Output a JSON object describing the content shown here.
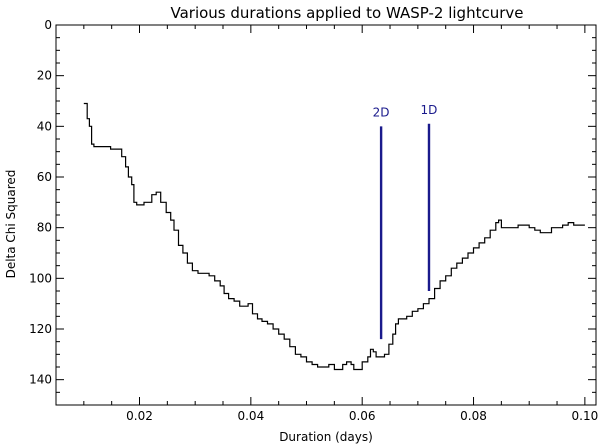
{
  "chart_data": {
    "type": "line",
    "title": "Various durations applied to WASP-2 lightcurve",
    "xlabel": "Duration (days)",
    "ylabel": "Delta Chi Squared",
    "xlim": [
      0.005,
      0.102
    ],
    "ylim": [
      0,
      150
    ],
    "y_inverted": true,
    "grid": false,
    "x_ticks": [
      0.02,
      0.04,
      0.06,
      0.08,
      0.1
    ],
    "x_tick_labels": [
      "0.02",
      "0.04",
      "0.06",
      "0.08",
      "0.10"
    ],
    "y_ticks": [
      0,
      20,
      40,
      60,
      80,
      100,
      120,
      140
    ],
    "y_tick_labels": [
      "0",
      "20",
      "40",
      "60",
      "80",
      "100",
      "120",
      "140"
    ],
    "series": [
      {
        "style": "step",
        "color": "#000000",
        "x": [
          0.01,
          0.0106,
          0.011,
          0.0114,
          0.0118,
          0.0125,
          0.0135,
          0.0148,
          0.016,
          0.0168,
          0.0175,
          0.018,
          0.0186,
          0.019,
          0.0195,
          0.02,
          0.0208,
          0.0214,
          0.0222,
          0.023,
          0.0238,
          0.0248,
          0.0256,
          0.0262,
          0.027,
          0.0278,
          0.0286,
          0.0295,
          0.0305,
          0.0315,
          0.0325,
          0.0335,
          0.0345,
          0.0352,
          0.036,
          0.037,
          0.038,
          0.0388,
          0.0395,
          0.0403,
          0.0412,
          0.042,
          0.043,
          0.044,
          0.045,
          0.046,
          0.047,
          0.048,
          0.049,
          0.05,
          0.051,
          0.052,
          0.053,
          0.054,
          0.055,
          0.056,
          0.0565,
          0.0572,
          0.058,
          0.0585,
          0.059,
          0.06,
          0.061,
          0.0615,
          0.062,
          0.0625,
          0.0632,
          0.064,
          0.0648,
          0.0655,
          0.066,
          0.0665,
          0.067,
          0.068,
          0.069,
          0.07,
          0.071,
          0.072,
          0.073,
          0.074,
          0.075,
          0.076,
          0.077,
          0.078,
          0.079,
          0.08,
          0.081,
          0.082,
          0.083,
          0.084,
          0.0845,
          0.085,
          0.086,
          0.087,
          0.088,
          0.089,
          0.09,
          0.091,
          0.092,
          0.093,
          0.094,
          0.095,
          0.096,
          0.097,
          0.098,
          0.099,
          0.1
        ],
        "y": [
          31,
          37,
          40,
          47,
          48,
          48,
          48,
          49,
          49,
          52,
          56,
          60,
          63,
          70,
          71,
          71,
          70,
          70,
          67,
          66,
          70,
          74,
          77,
          81,
          87,
          90,
          94,
          97,
          98,
          98,
          99,
          101,
          103,
          106,
          108,
          109,
          111,
          111,
          110,
          114,
          116,
          117,
          118,
          120,
          122,
          124,
          127,
          130,
          131,
          133,
          134,
          135,
          135,
          134,
          136,
          136,
          134,
          133,
          134,
          136,
          136,
          133,
          131,
          128,
          129,
          131,
          131,
          130,
          126,
          122,
          118,
          116,
          116,
          115,
          113,
          112,
          110,
          108,
          104,
          101,
          99,
          96,
          94,
          92,
          90,
          88,
          86,
          84,
          81,
          78,
          77,
          80,
          80,
          80,
          79,
          79,
          80,
          81,
          82,
          82,
          80,
          80,
          79,
          78,
          79,
          79,
          79
        ]
      }
    ],
    "annotations": [
      {
        "label": "2D",
        "x": 0.0634,
        "y_top": 40,
        "y_bottom": 124,
        "color": "#1a1a8c"
      },
      {
        "label": "1D",
        "x": 0.072,
        "y_top": 39,
        "y_bottom": 105,
        "color": "#1a1a8c"
      }
    ]
  }
}
